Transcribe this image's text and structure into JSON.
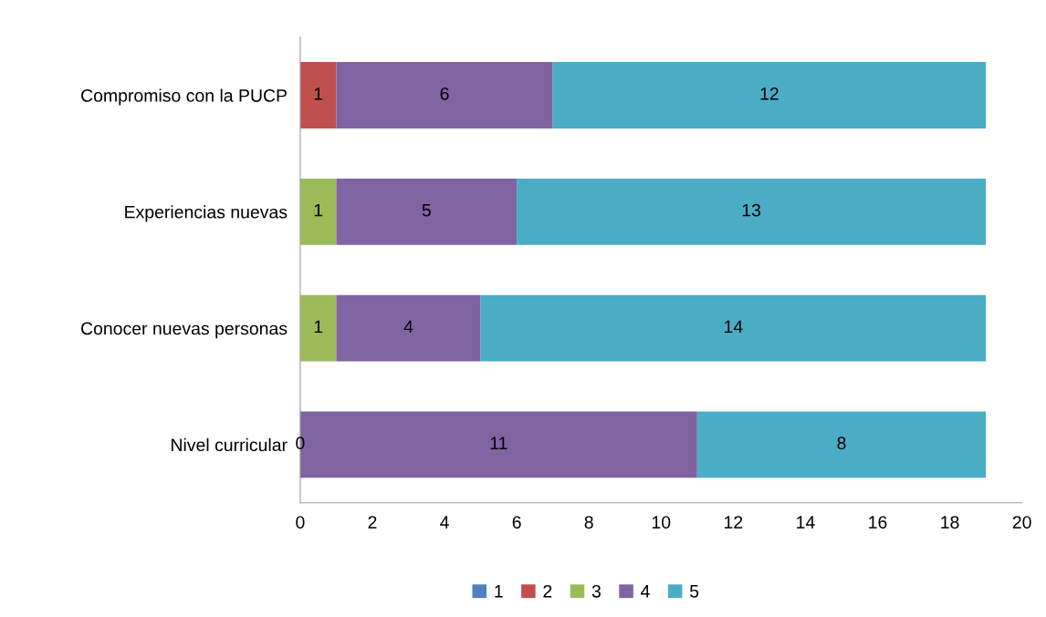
{
  "chart_data": {
    "type": "bar",
    "orientation": "horizontal",
    "stacked": true,
    "categories": [
      "Compromiso con la PUCP",
      "Experiencias nuevas",
      "Conocer nuevas personas",
      "Nivel curricular"
    ],
    "series": [
      {
        "name": "1",
        "color": "#4f81bd",
        "values": [
          null,
          null,
          null,
          null
        ],
        "value_labels": [
          null,
          null,
          null,
          null
        ]
      },
      {
        "name": "2",
        "color": "#c0504d",
        "values": [
          1,
          null,
          null,
          null
        ],
        "value_labels": [
          "1",
          null,
          null,
          null
        ]
      },
      {
        "name": "3",
        "color": "#9bbb59",
        "values": [
          null,
          1,
          1,
          0
        ],
        "value_labels": [
          null,
          "1",
          "1",
          "0"
        ]
      },
      {
        "name": "4",
        "color": "#8064a2",
        "values": [
          6,
          5,
          4,
          11
        ],
        "value_labels": [
          "6",
          "5",
          "4",
          "11"
        ]
      },
      {
        "name": "5",
        "color": "#4bacc6",
        "values": [
          12,
          13,
          14,
          8
        ],
        "value_labels": [
          "12",
          "13",
          "14",
          "8"
        ]
      }
    ],
    "xlim": [
      0,
      20
    ],
    "xticks": [
      0,
      2,
      4,
      6,
      8,
      10,
      12,
      14,
      16,
      18,
      20
    ],
    "grid": false,
    "legend": "bottom"
  }
}
